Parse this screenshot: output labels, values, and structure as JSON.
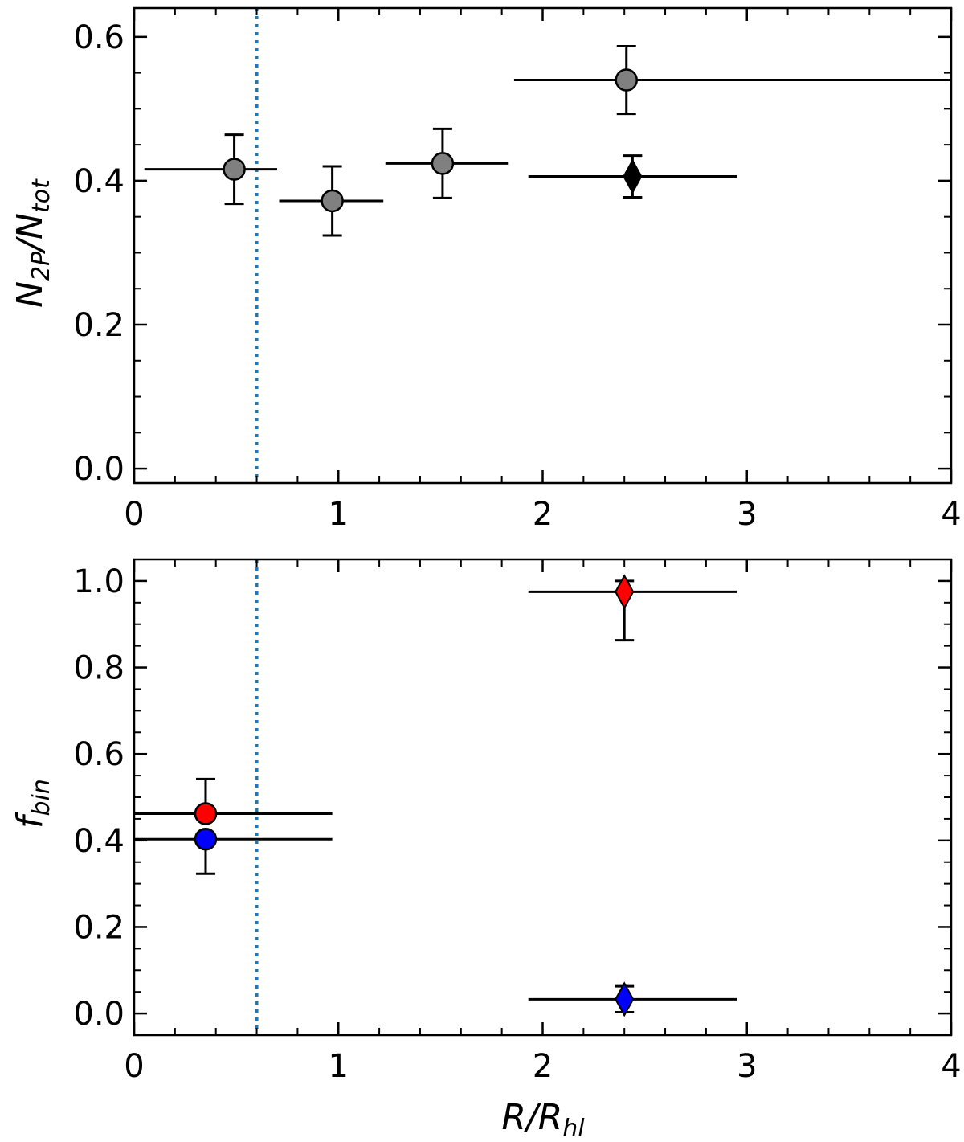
{
  "chart_data": [
    {
      "type": "scatter",
      "xlabel": "",
      "ylabel_main": "N",
      "ylabel_sub1": "2P",
      "ylabel_mid": "/N",
      "ylabel_sub2": "tot",
      "xlim": [
        0,
        4
      ],
      "ylim": [
        -0.02,
        0.64
      ],
      "xticks": [
        0,
        1,
        2,
        3,
        4
      ],
      "xtick_labels": [
        "0",
        "1",
        "2",
        "3",
        "4"
      ],
      "yticks": [
        0.0,
        0.2,
        0.4,
        0.6
      ],
      "ytick_labels": [
        "0.0",
        "0.2",
        "0.4",
        "0.6"
      ],
      "vline": {
        "x": 0.6,
        "color": "#1f77b4",
        "style": "dotted"
      },
      "series": [
        {
          "marker": "circle",
          "color": "#808080",
          "points": [
            {
              "x": 0.49,
              "y": 0.416,
              "xmin": 0.05,
              "xmax": 0.7,
              "yerr": 0.048
            },
            {
              "x": 0.97,
              "y": 0.372,
              "xmin": 0.71,
              "xmax": 1.22,
              "yerr": 0.048
            },
            {
              "x": 1.51,
              "y": 0.424,
              "xmin": 1.23,
              "xmax": 1.83,
              "yerr": 0.048
            },
            {
              "x": 2.41,
              "y": 0.54,
              "xmin": 1.86,
              "xmax": 4.0,
              "yerr": 0.047
            }
          ]
        },
        {
          "marker": "diamond",
          "color": "#000000",
          "points": [
            {
              "x": 2.44,
              "y": 0.406,
              "xmin": 1.93,
              "xmax": 2.95,
              "yerr": 0.029
            }
          ]
        }
      ]
    },
    {
      "type": "scatter",
      "xlabel_main": "R/R",
      "xlabel_sub": "hl",
      "ylabel_main": "f",
      "ylabel_sub1": "bin",
      "xlim": [
        0,
        4
      ],
      "ylim": [
        -0.05,
        1.05
      ],
      "xticks": [
        0,
        1,
        2,
        3,
        4
      ],
      "xtick_labels": [
        "0",
        "1",
        "2",
        "3",
        "4"
      ],
      "yticks": [
        0.0,
        0.2,
        0.4,
        0.6,
        0.8,
        1.0
      ],
      "ytick_labels": [
        "0.0",
        "0.2",
        "0.4",
        "0.6",
        "0.8",
        "1.0"
      ],
      "vline": {
        "x": 0.6,
        "color": "#1f77b4",
        "style": "dotted"
      },
      "series": [
        {
          "marker": "circle",
          "color": "#ff0000",
          "points": [
            {
              "x": 0.35,
              "y": 0.462,
              "xmin": 0.0,
              "xmax": 0.97,
              "yerr_lo": 0.0,
              "yerr_hi": 0.08
            }
          ]
        },
        {
          "marker": "circle",
          "color": "#0000ff",
          "points": [
            {
              "x": 0.35,
              "y": 0.403,
              "xmin": 0.0,
              "xmax": 0.97,
              "yerr_lo": 0.08,
              "yerr_hi": 0.0
            }
          ]
        },
        {
          "marker": "diamond",
          "color": "#ff0000",
          "points": [
            {
              "x": 2.4,
              "y": 0.975,
              "xmin": 1.93,
              "xmax": 2.95,
              "yerr_lo": 0.112,
              "yerr_hi": 0.025
            }
          ]
        },
        {
          "marker": "diamond",
          "color": "#0000ff",
          "points": [
            {
              "x": 2.4,
              "y": 0.033,
              "xmin": 1.93,
              "xmax": 2.95,
              "yerr_lo": 0.03,
              "yerr_hi": 0.03
            }
          ]
        }
      ]
    }
  ]
}
